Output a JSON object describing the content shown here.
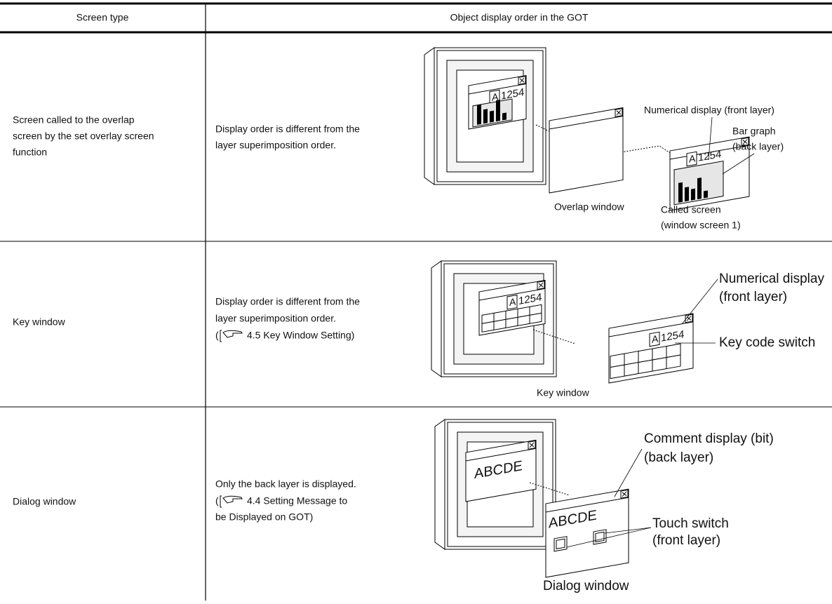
{
  "table": {
    "header": [
      "Screen type",
      "Object display order in the GOT"
    ],
    "rows": [
      {
        "screen_type": [
          "Screen called to the overlap",
          "screen by the set overlay screen",
          "function"
        ],
        "description": [
          "Display order is different from the",
          "layer superimposition order."
        ],
        "diagram": {
          "display_letter": "A",
          "display_value": "1254",
          "label_numerical": "Numerical display (front layer)",
          "label_bar": [
            "Bar graph",
            "(back layer)"
          ],
          "label_overlap": "Overlap window",
          "label_called": [
            "Called screen",
            "(window screen 1)"
          ]
        }
      },
      {
        "screen_type": [
          "Key window"
        ],
        "description": [
          "Display order is different from the",
          "layer superimposition order."
        ],
        "reference": [
          "(",
          "4.5 Key Window Setting)"
        ],
        "diagram": {
          "display_letter": "A",
          "display_value": "1254",
          "label_numerical": [
            "Numerical display",
            "(front layer)"
          ],
          "label_key": "Key code switch",
          "label_window": "Key window"
        }
      },
      {
        "screen_type": [
          "Dialog window"
        ],
        "description": [
          "Only the back layer is displayed."
        ],
        "reference": [
          "(",
          "4.4 Setting Message to",
          "be Displayed on GOT)"
        ],
        "diagram": {
          "display_text": "ABCDE",
          "label_comment": [
            "Comment display (bit)",
            "(back layer)"
          ],
          "label_touch": [
            "Touch switch",
            "(front layer)"
          ],
          "label_window": "Dialog window"
        }
      }
    ]
  }
}
